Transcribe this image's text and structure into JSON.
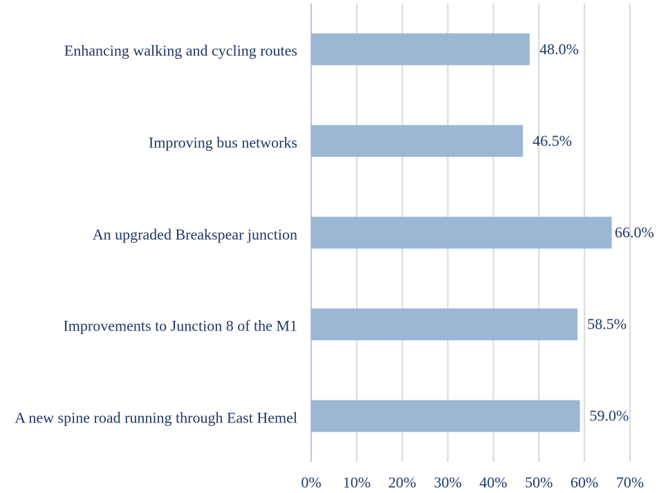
{
  "chart_data": {
    "type": "bar",
    "orientation": "horizontal",
    "categories": [
      "Enhancing walking and cycling routes",
      "Improving bus networks",
      "An upgraded Breakspear junction",
      "Improvements to Junction 8 of the M1",
      "A new spine road running through East Hemel"
    ],
    "values": [
      48.0,
      46.5,
      66.0,
      58.5,
      59.0
    ],
    "value_labels": [
      "48.0%",
      "46.5%",
      "66.0%",
      "58.5%",
      "59.0%"
    ],
    "color": "#9bb7d4",
    "xlim": [
      0,
      70
    ],
    "xticks": [
      {
        "value": 0,
        "label": "0%"
      },
      {
        "value": 10,
        "label": "10%"
      },
      {
        "value": 20,
        "label": "20%"
      },
      {
        "value": 30,
        "label": "30%"
      },
      {
        "value": 40,
        "label": "40%"
      },
      {
        "value": 50,
        "label": "50%"
      },
      {
        "value": 60,
        "label": "60%"
      },
      {
        "value": 70,
        "label": "70%"
      }
    ],
    "grid": true
  }
}
